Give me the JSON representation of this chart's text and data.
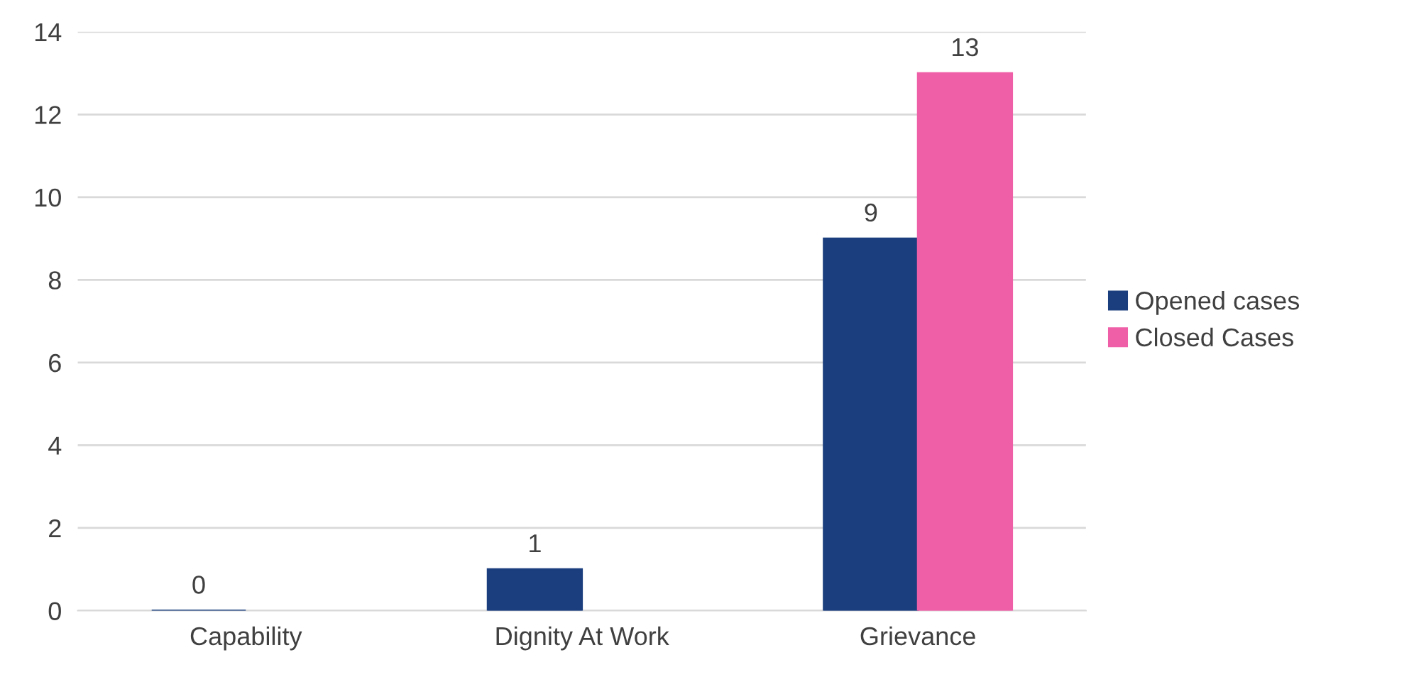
{
  "chart_data": {
    "type": "bar",
    "categories": [
      "Capability",
      "Dignity At Work",
      "Grievance"
    ],
    "series": [
      {
        "name": "Opened cases",
        "color": "#1b3f7e",
        "values": [
          0,
          1,
          9
        ]
      },
      {
        "name": "Closed Cases",
        "color": "#ef5fa8",
        "values": [
          null,
          null,
          13
        ]
      }
    ],
    "ylim": [
      0,
      14
    ],
    "yticks": [
      0,
      2,
      4,
      6,
      8,
      10,
      12,
      14
    ],
    "grid": "y",
    "legend": "right",
    "data_labels": true
  }
}
